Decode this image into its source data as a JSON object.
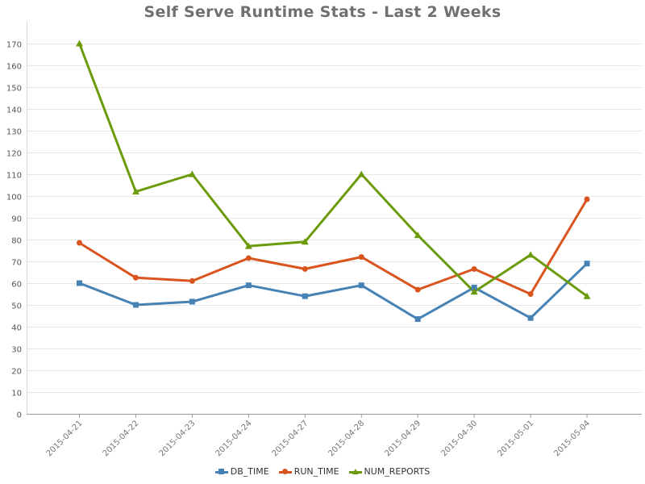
{
  "chart_data": {
    "type": "line",
    "title": "Self Serve Runtime Stats - Last 2 Weeks",
    "xlabel": "",
    "ylabel": "",
    "categories": [
      "2015-04-21",
      "2015-04-22",
      "2015-04-23",
      "2015-04-24",
      "2015-04-27",
      "2015-04-28",
      "2015-04-29",
      "2015-04-30",
      "2015-05-01",
      "2015-05-04"
    ],
    "ylim": [
      0,
      180
    ],
    "yticks": [
      0,
      10,
      20,
      30,
      40,
      50,
      60,
      70,
      80,
      90,
      100,
      110,
      120,
      130,
      140,
      150,
      160,
      170
    ],
    "grid": true,
    "legend_position": "bottom-center",
    "series": [
      {
        "name": "DB_TIME",
        "color": "#4682b4",
        "marker": "square",
        "values": [
          60,
          50,
          51.5,
          59,
          54,
          59,
          43.5,
          58,
          44,
          69
        ]
      },
      {
        "name": "RUN_TIME",
        "color": "#d9541e",
        "marker": "circle",
        "values": [
          78.5,
          62.5,
          61,
          71.5,
          66.5,
          72,
          57,
          66.5,
          55,
          98.5
        ]
      },
      {
        "name": "NUM_REPORTS",
        "color": "#6b9a0a",
        "marker": "triangle",
        "values": [
          170,
          102,
          110,
          77,
          79,
          110,
          82,
          56,
          73,
          54
        ]
      }
    ]
  }
}
